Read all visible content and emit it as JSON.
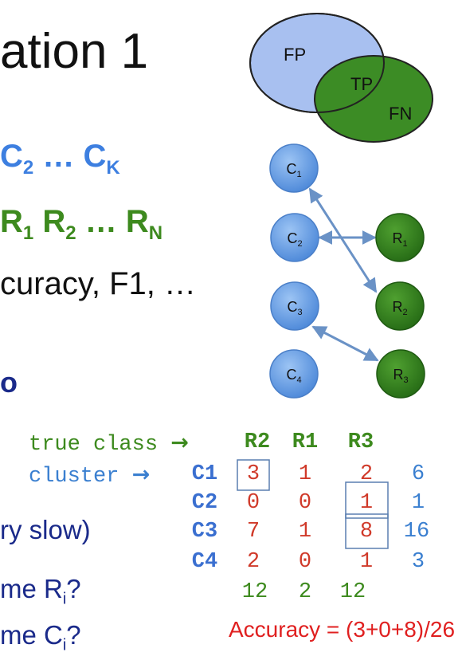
{
  "title": "ation 1",
  "line1": {
    "text": "C",
    "sub1": "2",
    "mid": " … C",
    "sub2": "K"
  },
  "line2": {
    "text": "R",
    "sub1": "1",
    "mid1": " R",
    "sub2": "2",
    "mid2": " … R",
    "sub3": "N"
  },
  "line3": "curacy, F1, …",
  "trailing_char": "o",
  "venn": {
    "fp": "FP",
    "tp": "TP",
    "fn": "FN"
  },
  "clusters": [
    {
      "label": "C",
      "sub": "1"
    },
    {
      "label": "C",
      "sub": "2"
    },
    {
      "label": "C",
      "sub": "3"
    },
    {
      "label": "C",
      "sub": "4"
    }
  ],
  "classes": [
    {
      "label": "R",
      "sub": "1"
    },
    {
      "label": "R",
      "sub": "2"
    },
    {
      "label": "R",
      "sub": "3"
    }
  ],
  "table": {
    "true_class_label": "true class",
    "cluster_label": "cluster",
    "arrow": "→",
    "col_headers": [
      "R2",
      "R1",
      "R3"
    ],
    "rows": [
      {
        "name": "C1",
        "values": [
          "3",
          "1",
          "2"
        ],
        "total": "6"
      },
      {
        "name": "C2",
        "values": [
          "0",
          "0",
          "1"
        ],
        "total": "1"
      },
      {
        "name": "C3",
        "values": [
          "7",
          "1",
          "8"
        ],
        "total": "16"
      },
      {
        "name": "C4",
        "values": [
          "2",
          "0",
          "1"
        ],
        "total": "3"
      }
    ],
    "col_totals": [
      "12",
      "2",
      "12"
    ]
  },
  "lower_lines": [
    {
      "text": "ry slow)"
    },
    {
      "text": "me R",
      "sub": "i",
      "after": "?"
    },
    {
      "text": "me C",
      "sub": "i",
      "after": "?"
    }
  ],
  "accuracy": "Accuracy = (3+0+8)/26",
  "colors": {
    "blue_node": "#5b97e0",
    "green_node": "#2f7a1f",
    "venn_blue": "#a8c0f0",
    "venn_green": "#3c8c25",
    "arrow": "#6a92c6"
  }
}
